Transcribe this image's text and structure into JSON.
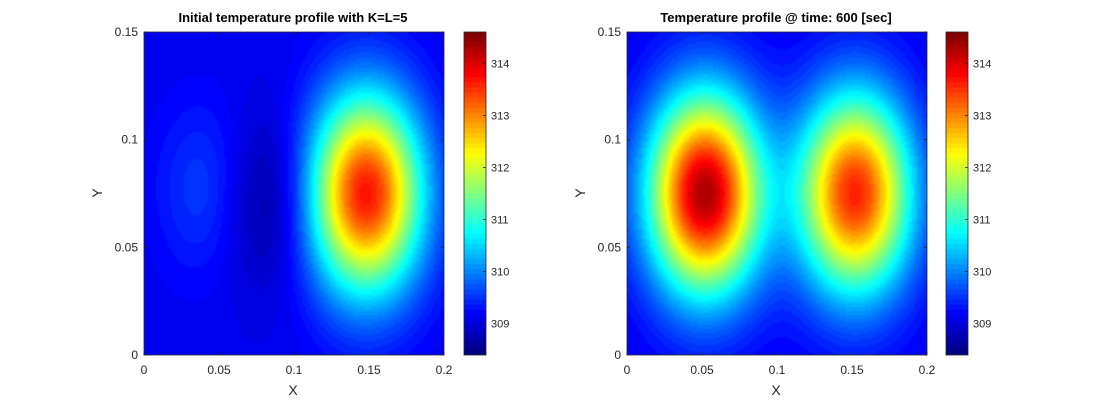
{
  "chart_data": [
    {
      "type": "heatmap",
      "plot_kind": "filled contour",
      "title": "Initial temperature profile with K=L=5",
      "xlabel": "X",
      "ylabel": "Y",
      "xlim": [
        0,
        0.2
      ],
      "ylim": [
        0,
        0.15
      ],
      "xticks": [
        "0",
        "0.05",
        "0.1",
        "0.15",
        "0.2"
      ],
      "yticks": [
        "0",
        "0.05",
        "0.1",
        "0.15"
      ],
      "xtick_values": [
        0,
        0.05,
        0.1,
        0.15,
        0.2
      ],
      "ytick_values": [
        0,
        0.05,
        0.1,
        0.15
      ],
      "colormap": "jet",
      "colorbar": {
        "range": [
          308.4,
          314.6
        ],
        "ticks": [
          "309",
          "310",
          "311",
          "312",
          "313",
          "314"
        ],
        "tick_values": [
          309,
          310,
          311,
          312,
          313,
          314
        ]
      },
      "baseline_temperature": 309.1,
      "features": [
        {
          "kind": "hot spot",
          "x": 0.148,
          "y": 0.075,
          "value": 313.7
        },
        {
          "kind": "warm spot",
          "x": 0.042,
          "y": 0.077,
          "value": 309.6
        },
        {
          "kind": "cold spot",
          "x": 0.083,
          "y": 0.072,
          "value": 308.5
        }
      ]
    },
    {
      "type": "heatmap",
      "plot_kind": "filled contour",
      "title": "Temperature profile @ time: 600 [sec]",
      "xlabel": "X",
      "ylabel": "Y",
      "xlim": [
        0,
        0.2
      ],
      "ylim": [
        0,
        0.15
      ],
      "xticks": [
        "0",
        "0.05",
        "0.1",
        "0.15",
        "0.2"
      ],
      "yticks": [
        "0",
        "0.05",
        "0.1",
        "0.15"
      ],
      "xtick_values": [
        0,
        0.05,
        0.1,
        0.15,
        0.2
      ],
      "ytick_values": [
        0,
        0.05,
        0.1,
        0.15
      ],
      "colormap": "jet",
      "colorbar": {
        "range": [
          308.4,
          314.6
        ],
        "ticks": [
          "309",
          "310",
          "311",
          "312",
          "313",
          "314"
        ],
        "tick_values": [
          309,
          310,
          311,
          312,
          313,
          314
        ]
      },
      "baseline_temperature": 309.1,
      "features": [
        {
          "kind": "hot spot",
          "x": 0.052,
          "y": 0.075,
          "value": 314.3
        },
        {
          "kind": "hot spot",
          "x": 0.152,
          "y": 0.075,
          "value": 313.6
        }
      ]
    }
  ]
}
